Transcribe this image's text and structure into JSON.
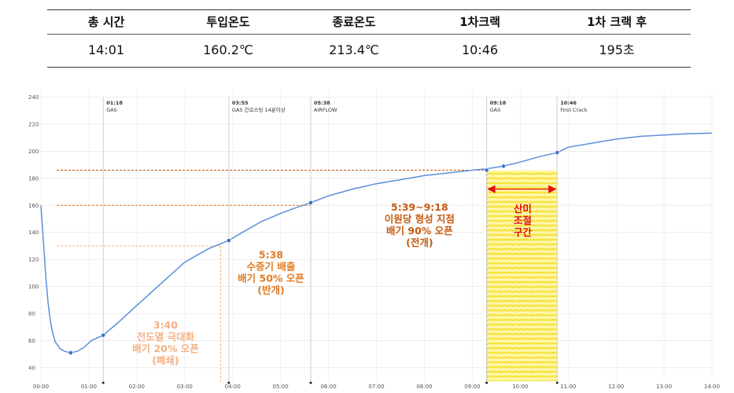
{
  "summary": {
    "headers": [
      "총 시간",
      "투입온도",
      "종료온도",
      "1차크랙",
      "1차 크랙 후"
    ],
    "values": [
      "14:01",
      "160.2℃",
      "213.4℃",
      "10:46",
      "195초"
    ]
  },
  "chart_data": {
    "type": "line",
    "title": "",
    "xlabel": "",
    "ylabel": "",
    "x_unit": "minutes",
    "xlim": [
      0,
      14
    ],
    "ylim": [
      30,
      245
    ],
    "x_ticks": [
      0,
      1,
      2,
      3,
      4,
      5,
      6,
      7,
      8,
      9,
      10,
      11,
      12,
      13,
      14
    ],
    "x_tick_labels": [
      "00:00",
      "01:00",
      "02:00",
      "03:00",
      "04:00",
      "05:00",
      "06:00",
      "07:00",
      "08:00",
      "09:00",
      "10:00",
      "11:00",
      "12:00",
      "13:00",
      "14:00"
    ],
    "y_ticks": [
      40,
      60,
      80,
      100,
      120,
      140,
      160,
      180,
      200,
      220,
      240
    ],
    "y_tick_labels": [
      "40",
      "60",
      "80",
      "100",
      "120",
      "140",
      "160",
      "180",
      "200",
      "220",
      "240"
    ],
    "grid": true,
    "series": [
      {
        "name": "temperature",
        "color": "#5b8fd9",
        "x": [
          0,
          0.05,
          0.1,
          0.15,
          0.2,
          0.25,
          0.3,
          0.4,
          0.5,
          0.62,
          0.75,
          0.9,
          1.05,
          1.3,
          1.6,
          2.0,
          2.5,
          3.0,
          3.5,
          3.92,
          4.2,
          4.6,
          5.0,
          5.3,
          5.63,
          6.0,
          6.5,
          7.0,
          7.5,
          8.0,
          8.5,
          9.0,
          9.3,
          9.65,
          10.0,
          10.4,
          10.77,
          11.0,
          11.5,
          12.0,
          12.5,
          13.0,
          13.5,
          14.0
        ],
        "y": [
          160,
          135,
          108,
          88,
          74,
          65,
          59,
          54,
          52,
          51,
          52,
          55,
          60,
          64,
          73,
          86,
          102,
          118,
          128,
          134,
          140,
          148,
          154,
          158,
          162,
          167,
          172,
          176,
          179,
          182,
          184,
          186,
          187,
          189,
          192,
          196,
          199,
          203,
          206,
          209,
          211,
          212,
          213,
          213.4
        ]
      }
    ],
    "markers": [
      {
        "x": 0.62,
        "y": 51
      },
      {
        "x": 1.3,
        "y": 64
      },
      {
        "x": 3.92,
        "y": 134
      },
      {
        "x": 5.63,
        "y": 162
      },
      {
        "x": 9.3,
        "y": 186
      },
      {
        "x": 9.65,
        "y": 189
      },
      {
        "x": 10.77,
        "y": 199
      }
    ],
    "events": [
      {
        "x": 1.3,
        "time": "01:18",
        "label": "GAS"
      },
      {
        "x": 3.92,
        "time": "03:55",
        "label": "GAS 간로스팅 14분이상"
      },
      {
        "x": 5.63,
        "time": "05:38",
        "label": "AIRFLOW"
      },
      {
        "x": 9.3,
        "time": "09:18",
        "label": "GAS"
      },
      {
        "x": 10.77,
        "time": "10:46",
        "label": "First Crack"
      }
    ],
    "ref_lines": [
      {
        "y": 130,
        "x_end": 3.75,
        "color": "#f4b183",
        "to_axis": true
      },
      {
        "y": 160,
        "x_end": 5.63,
        "color": "#e07a20",
        "to_axis": true
      },
      {
        "y": 186,
        "x_end": 9.3,
        "color": "#c55a11",
        "to_axis": true
      }
    ],
    "highlight_band": {
      "x0": 9.3,
      "x1": 10.77,
      "y0": 30,
      "y1": 186,
      "color": "#ffe600"
    },
    "annotations": [
      {
        "lines": [
          "3:40",
          "전도열 극대화",
          "배기 20% 오픈",
          "(폐쇄)"
        ],
        "color": "#f4b183",
        "x": 2.6,
        "y": 69
      },
      {
        "lines": [
          "5:38",
          "수증기 배출",
          "배기 50% 오픈",
          "(반개)"
        ],
        "color": "#e07a20",
        "x": 4.8,
        "y": 121
      },
      {
        "lines": [
          "5:39~9:18",
          "이원당 형성 지점",
          "배기 90% 오픈",
          "(전개)"
        ],
        "color": "#c55a11",
        "x": 7.9,
        "y": 156
      },
      {
        "lines": [
          "산미",
          "조절",
          "구간"
        ],
        "color": "#e0101c",
        "x": 10.05,
        "y": 155
      }
    ]
  }
}
